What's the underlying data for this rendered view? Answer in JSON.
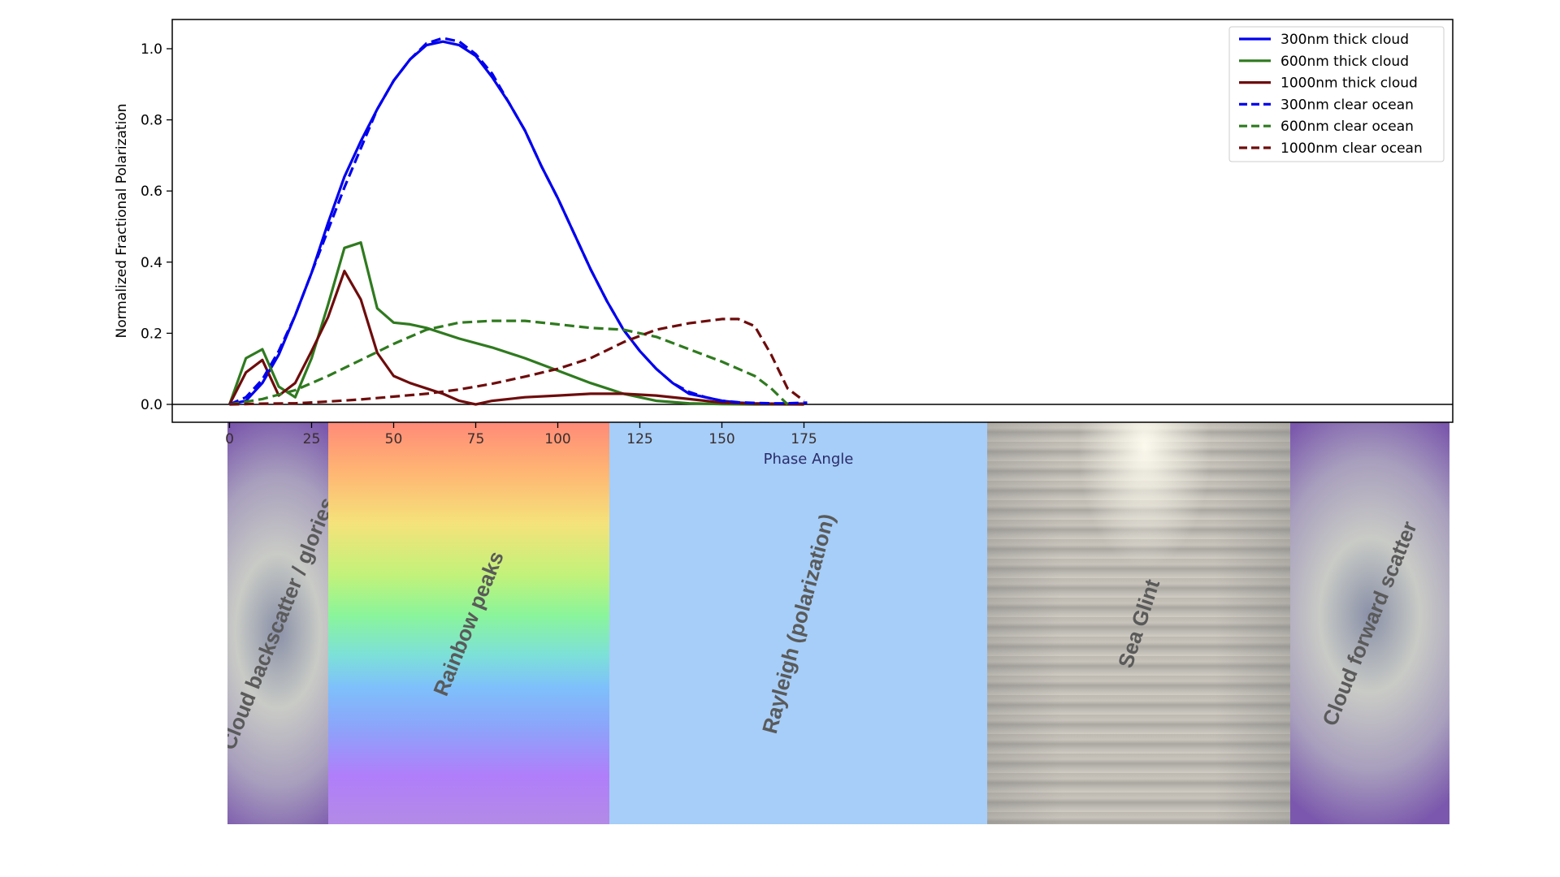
{
  "chart_data": {
    "type": "line",
    "xlabel": "Phase Angle",
    "ylabel": "Normalized Fractional Polarization",
    "xlim": [
      -9,
      186
    ],
    "ylim": [
      -0.05,
      1.08
    ],
    "xticks": [
      0,
      25,
      50,
      75,
      100,
      125,
      150,
      175
    ],
    "yticks": [
      0.0,
      0.2,
      0.4,
      0.6,
      0.8,
      1.0
    ],
    "x_tick_labels": [
      "0",
      "25",
      "50",
      "75",
      "100",
      "125",
      "150",
      "175"
    ],
    "y_tick_labels": [
      "0.0",
      "0.2",
      "0.4",
      "0.6",
      "0.8",
      "1.0"
    ],
    "grid": false,
    "legend_position": "top-right",
    "zero_line": true,
    "series": [
      {
        "name": "300nm thick cloud",
        "color": "#0000ee",
        "dash": "solid",
        "x": [
          0,
          5,
          10,
          15,
          20,
          25,
          30,
          35,
          40,
          45,
          50,
          55,
          60,
          65,
          70,
          75,
          80,
          85,
          90,
          95,
          100,
          105,
          110,
          115,
          120,
          125,
          130,
          135,
          140,
          145,
          150,
          155,
          160,
          165,
          170,
          175
        ],
        "y": [
          0.0,
          0.01,
          0.06,
          0.14,
          0.25,
          0.37,
          0.51,
          0.64,
          0.74,
          0.83,
          0.91,
          0.97,
          1.01,
          1.02,
          1.01,
          0.98,
          0.92,
          0.85,
          0.77,
          0.67,
          0.58,
          0.48,
          0.38,
          0.29,
          0.21,
          0.15,
          0.1,
          0.06,
          0.03,
          0.02,
          0.01,
          0.005,
          0.003,
          0.002,
          0.002,
          0.002
        ]
      },
      {
        "name": "600nm thick cloud",
        "color": "#2f7a1f",
        "dash": "solid",
        "x": [
          0,
          5,
          10,
          15,
          20,
          25,
          30,
          35,
          40,
          45,
          50,
          55,
          60,
          70,
          80,
          90,
          100,
          110,
          120,
          130,
          140,
          150,
          160,
          170,
          175
        ],
        "y": [
          0.0,
          0.13,
          0.155,
          0.05,
          0.02,
          0.13,
          0.28,
          0.44,
          0.455,
          0.27,
          0.23,
          0.225,
          0.215,
          0.185,
          0.16,
          0.13,
          0.095,
          0.06,
          0.03,
          0.01,
          0.003,
          0.001,
          0.0,
          0.0,
          0.0
        ]
      },
      {
        "name": "1000nm thick cloud",
        "color": "#6e0c0c",
        "dash": "solid",
        "x": [
          0,
          5,
          10,
          15,
          20,
          25,
          30,
          35,
          40,
          45,
          50,
          55,
          60,
          65,
          70,
          75,
          80,
          90,
          100,
          110,
          120,
          130,
          140,
          150,
          160,
          170,
          175
        ],
        "y": [
          0.0,
          0.09,
          0.125,
          0.025,
          0.06,
          0.15,
          0.245,
          0.375,
          0.295,
          0.145,
          0.08,
          0.06,
          0.045,
          0.03,
          0.01,
          0.0,
          0.01,
          0.02,
          0.025,
          0.03,
          0.03,
          0.025,
          0.015,
          0.005,
          0.002,
          0.001,
          0.0
        ]
      },
      {
        "name": "300nm clear ocean",
        "color": "#0000ee",
        "dash": "dashed",
        "x": [
          0,
          5,
          10,
          15,
          20,
          25,
          30,
          35,
          40,
          45,
          50,
          55,
          60,
          65,
          70,
          75,
          80,
          85,
          90,
          95,
          100,
          105,
          110,
          115,
          120,
          125,
          130,
          135,
          140,
          145,
          150,
          155,
          160,
          165,
          170,
          176
        ],
        "y": [
          0.0,
          0.02,
          0.07,
          0.15,
          0.25,
          0.37,
          0.49,
          0.61,
          0.72,
          0.83,
          0.91,
          0.97,
          1.015,
          1.03,
          1.02,
          0.985,
          0.93,
          0.85,
          0.77,
          0.67,
          0.58,
          0.48,
          0.38,
          0.29,
          0.21,
          0.15,
          0.1,
          0.06,
          0.035,
          0.02,
          0.01,
          0.006,
          0.004,
          0.003,
          0.003,
          0.005
        ]
      },
      {
        "name": "600nm clear ocean",
        "color": "#2f7a1f",
        "dash": "dashed",
        "x": [
          0,
          10,
          20,
          30,
          40,
          50,
          60,
          70,
          80,
          90,
          100,
          110,
          120,
          130,
          140,
          150,
          155,
          160,
          165,
          170
        ],
        "y": [
          0.0,
          0.015,
          0.04,
          0.08,
          0.125,
          0.17,
          0.21,
          0.23,
          0.235,
          0.235,
          0.225,
          0.215,
          0.21,
          0.19,
          0.155,
          0.12,
          0.1,
          0.08,
          0.045,
          0.0
        ]
      },
      {
        "name": "1000nm clear ocean",
        "color": "#6e0c0c",
        "dash": "dashed",
        "x": [
          0,
          10,
          20,
          30,
          40,
          50,
          60,
          70,
          80,
          90,
          100,
          110,
          120,
          130,
          140,
          150,
          155,
          160,
          165,
          170,
          175
        ],
        "y": [
          0.0,
          0.002,
          0.003,
          0.008,
          0.014,
          0.022,
          0.03,
          0.042,
          0.058,
          0.078,
          0.1,
          0.13,
          0.175,
          0.21,
          0.228,
          0.24,
          0.24,
          0.22,
          0.14,
          0.045,
          0.01
        ]
      }
    ],
    "bands": [
      {
        "name": "Cloud backscatter / glories",
        "x_start": 0,
        "x_end": 15.3
      },
      {
        "name": "Rainbow peaks",
        "x_start": 15.3,
        "x_end": 58
      },
      {
        "name": "Rayleigh (polarization)",
        "x_start": 58,
        "x_end": 115.5
      },
      {
        "name": "Sea Glint",
        "x_start": 115.5,
        "x_end": 161.5
      },
      {
        "name": "Cloud forward scatter",
        "x_start": 161.5,
        "x_end": 186
      }
    ]
  }
}
